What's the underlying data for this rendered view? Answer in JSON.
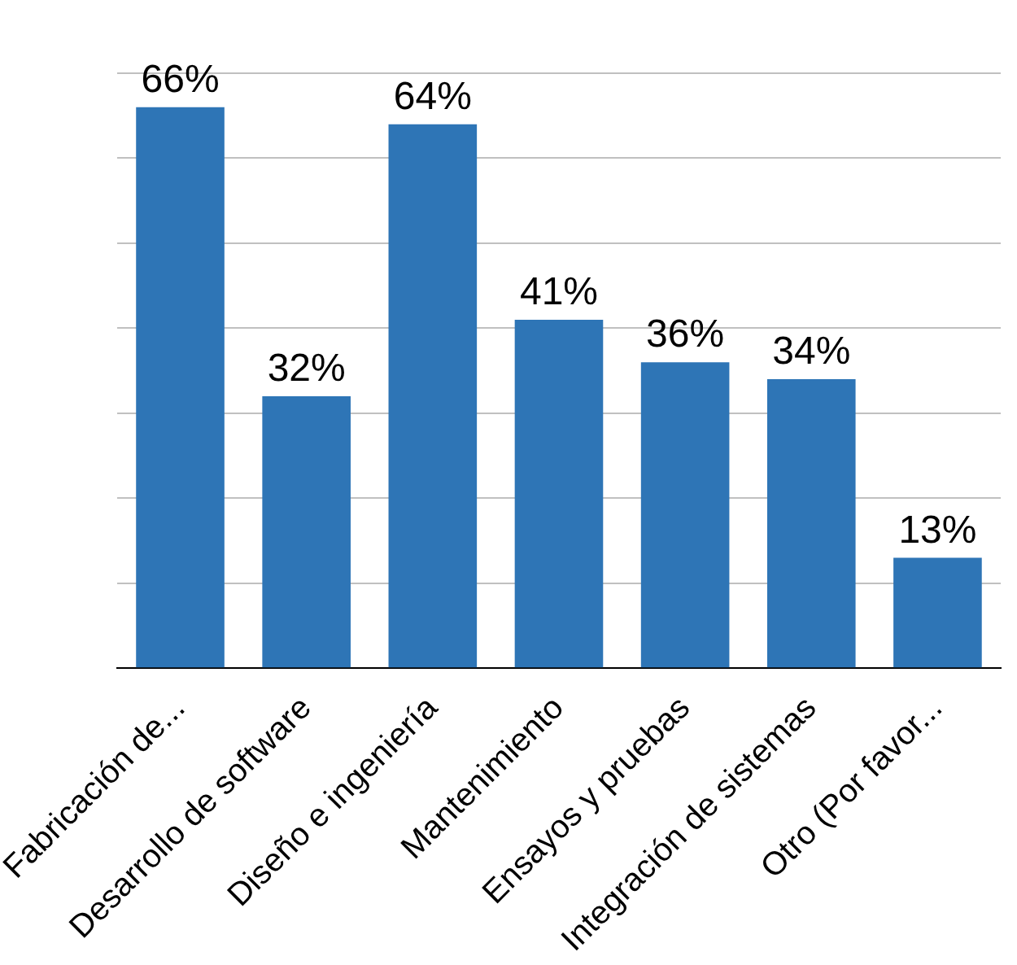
{
  "chart_data": {
    "type": "bar",
    "categories": [
      "Fabricación de...",
      "Desarrollo de software",
      "Diseño e ingeniería",
      "Mantenimiento",
      "Ensayos y pruebas",
      "Integración de sistemas",
      "Otro (Por favor..."
    ],
    "values": [
      66,
      32,
      64,
      41,
      36,
      34,
      13
    ],
    "value_labels": [
      "66%",
      "32%",
      "64%",
      "41%",
      "36%",
      "34%",
      "13%"
    ],
    "color": "#2e75b6",
    "ylim": [
      0,
      70
    ],
    "yticks": [
      0,
      10,
      20,
      30,
      40,
      50,
      60,
      70
    ],
    "grid": "y",
    "tick_labels": "x",
    "legend": false
  }
}
